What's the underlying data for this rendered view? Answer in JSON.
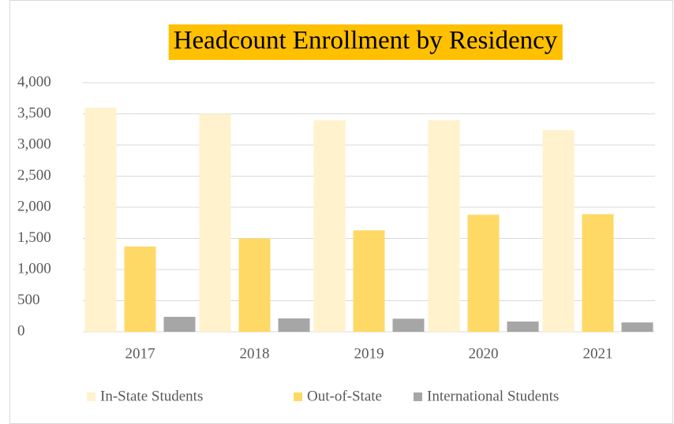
{
  "chart_data": {
    "type": "bar",
    "title": "Headcount Enrollment by Residency",
    "categories": [
      "2017",
      "2018",
      "2019",
      "2020",
      "2021"
    ],
    "series": [
      {
        "name": "In-State Students",
        "color": "#fff2cc",
        "values": [
          3600,
          3500,
          3400,
          3400,
          3240
        ]
      },
      {
        "name": "Out-of-State",
        "color": "#ffd966",
        "values": [
          1370,
          1500,
          1630,
          1880,
          1890
        ]
      },
      {
        "name": "International Students",
        "color": "#a6a6a6",
        "values": [
          240,
          215,
          210,
          165,
          150
        ]
      }
    ],
    "ylim": [
      0,
      4000
    ],
    "yticks": [
      0,
      500,
      {
        "value": 1000,
        "label": "1,000"
      },
      {
        "value": 1500,
        "label": "1,500"
      },
      {
        "value": 2000,
        "label": "2,000"
      },
      {
        "value": 2500,
        "label": "2,500"
      },
      {
        "value": 3000,
        "label": "3,000"
      },
      {
        "value": 3500,
        "label": "3,500"
      },
      {
        "value": 4000,
        "label": "4,000"
      }
    ],
    "grid": true,
    "legend": "bottom",
    "title_background": "#ffc000"
  }
}
